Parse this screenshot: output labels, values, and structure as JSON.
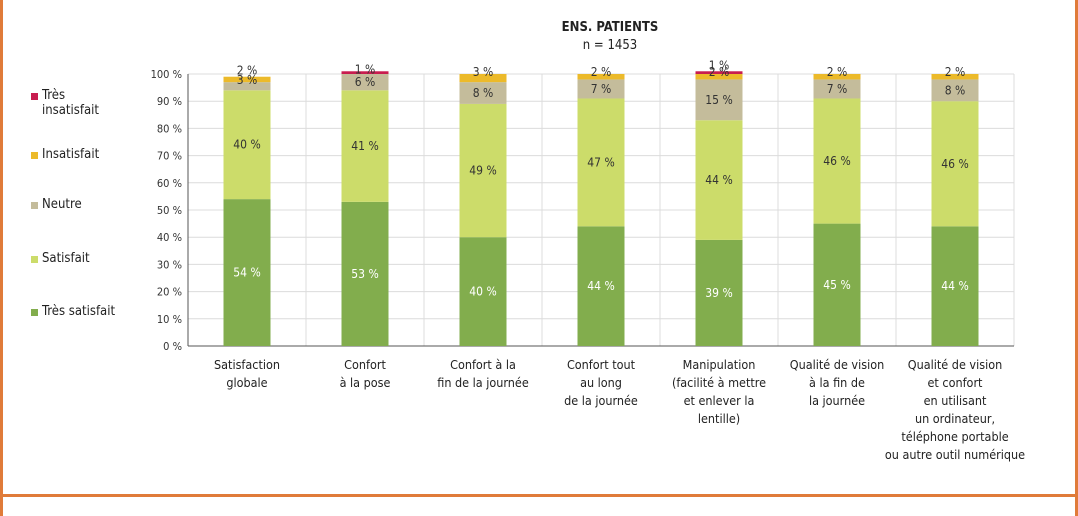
{
  "chart_data": {
    "type": "bar",
    "stacked": true,
    "title": "ENS. PATIENTS",
    "subtitle": "n = 1453",
    "ylim": [
      0,
      100
    ],
    "y_ticks": [
      "0 %",
      "10 %",
      "20 %",
      "30 %",
      "40 %",
      "50 %",
      "60 %",
      "70 %",
      "80 %",
      "90 %",
      "100 %"
    ],
    "grid": true,
    "legend_position": "left",
    "categories": [
      "Satisfaction\nglobale",
      "Confort\nà la pose",
      "Confort à la\nfin de la journée",
      "Confort tout\nau long\nde la journée",
      "Manipulation\n(facilité à mettre\net enlever la\nlentille)",
      "Qualité de vision\nà la fin de\nla journée",
      "Qualité de vision\net confort\nen utilisant\nun ordinateur,\ntéléphone portable\nou autre outil numérique"
    ],
    "series": [
      {
        "name": "Très satisfait",
        "color": "#82ad4d",
        "label_color": "#ffffff",
        "values": [
          54,
          53,
          40,
          44,
          39,
          45,
          44
        ]
      },
      {
        "name": "Satisfait",
        "color": "#ccdc6a",
        "label_color": "#333333",
        "values": [
          40,
          41,
          49,
          47,
          44,
          46,
          46
        ]
      },
      {
        "name": "Neutre",
        "color": "#c4bc9b",
        "label_color": "#333333",
        "values": [
          3,
          6,
          8,
          7,
          15,
          7,
          8
        ]
      },
      {
        "name": "Insatisfait",
        "color": "#ecba2a",
        "label_color": "#333333",
        "values": [
          2,
          0,
          3,
          2,
          2,
          2,
          2
        ]
      },
      {
        "name": "Très insatisfait",
        "color": "#c81d4f",
        "label_color": "#333333",
        "values": [
          0,
          1,
          0,
          0,
          1,
          0,
          0
        ]
      }
    ],
    "data_labels": [
      [
        "54 %",
        "40 %",
        "3 %",
        "2 %",
        ""
      ],
      [
        "53 %",
        "41 %",
        "6 %",
        "",
        "1 %"
      ],
      [
        "40 %",
        "49 %",
        "8 %",
        "3 %",
        ""
      ],
      [
        "44 %",
        "47 %",
        "7 %",
        "2 %",
        ""
      ],
      [
        "39 %",
        "44 %",
        "15 %",
        "2 %",
        "1 %"
      ],
      [
        "45 %",
        "46 %",
        "7 %",
        "2 %",
        ""
      ],
      [
        "44 %",
        "46 %",
        "8 %",
        "2 %",
        ""
      ]
    ],
    "legend": [
      "Très insatisfait",
      "Insatisfait",
      "Neutre",
      "Satisfait",
      "Très satisfait"
    ]
  },
  "legend_items": [
    {
      "label": "Très\ninsatisfait",
      "color": "#c81d4f"
    },
    {
      "label": "Insatisfait",
      "color": "#ecba2a"
    },
    {
      "label": "Neutre",
      "color": "#c4bc9b"
    },
    {
      "label": "Satisfait",
      "color": "#ccdc6a"
    },
    {
      "label": "Très satisfait",
      "color": "#82ad4d"
    }
  ]
}
